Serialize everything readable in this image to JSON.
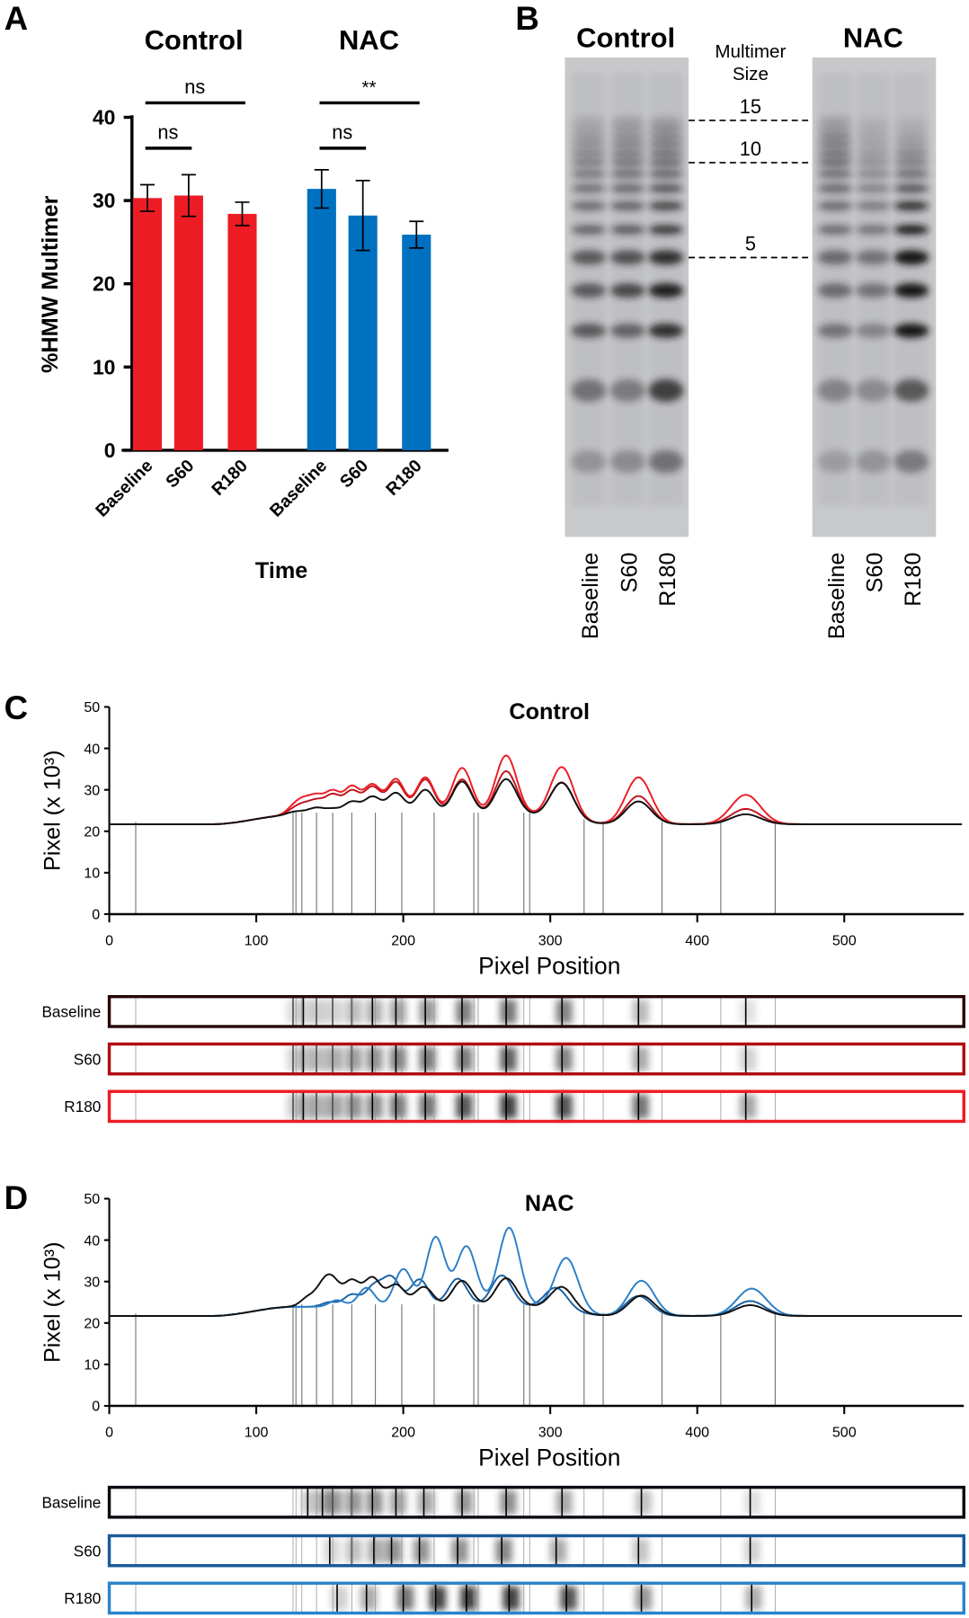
{
  "panel_labels": {
    "a": "A",
    "b": "B",
    "c": "C",
    "d": "D"
  },
  "chart_data": [
    {
      "panel": "A",
      "type": "bar",
      "group_titles": [
        "Control",
        "NAC"
      ],
      "categories": [
        "Baseline",
        "S60",
        "R180"
      ],
      "series": [
        {
          "name": "Control",
          "color": "#ed1c24",
          "values": [
            30.3,
            30.6,
            28.4
          ],
          "errors": [
            1.6,
            2.5,
            1.4
          ]
        },
        {
          "name": "NAC",
          "color": "#0070c0",
          "values": [
            31.4,
            28.2,
            25.9
          ],
          "errors": [
            2.3,
            4.2,
            1.6
          ]
        }
      ],
      "ylabel": "%HMW Multimer",
      "xlabel": "Time",
      "ylim": [
        0,
        40
      ],
      "yticks": [
        "0",
        "10",
        "20",
        "30",
        "40"
      ],
      "significance": [
        {
          "group": 0,
          "from": 0,
          "to": 1,
          "label": "ns"
        },
        {
          "group": 0,
          "from": 0,
          "to": 2,
          "label": "ns"
        },
        {
          "group": 1,
          "from": 0,
          "to": 1,
          "label": "ns"
        },
        {
          "group": 1,
          "from": 0,
          "to": 2,
          "label": "**"
        }
      ]
    },
    {
      "panel": "B",
      "type": "gel",
      "gel_titles": [
        "Control",
        "NAC"
      ],
      "size_label": [
        "Multimer",
        "Size"
      ],
      "size_markers": [
        {
          "label": "15",
          "band": 15
        },
        {
          "label": "10",
          "band": 10
        },
        {
          "label": "5",
          "band": 5
        }
      ],
      "lanes": [
        "Baseline",
        "S60",
        "R180"
      ],
      "band_intensity": {
        "Control": [
          [
            0.25,
            0.45,
            0.6,
            0.6,
            0.6,
            0.55,
            0.5,
            0.45,
            0.4,
            0.35,
            0.3,
            0.25,
            0.2,
            0.15,
            0.1
          ],
          [
            0.3,
            0.4,
            0.55,
            0.7,
            0.65,
            0.6,
            0.55,
            0.5,
            0.45,
            0.4,
            0.35,
            0.3,
            0.25,
            0.2,
            0.15
          ],
          [
            0.45,
            0.75,
            0.85,
            0.95,
            0.85,
            0.8,
            0.7,
            0.6,
            0.5,
            0.45,
            0.4,
            0.35,
            0.3,
            0.25,
            0.15
          ]
        ],
        "NAC": [
          [
            0.2,
            0.35,
            0.45,
            0.5,
            0.5,
            0.5,
            0.5,
            0.5,
            0.45,
            0.45,
            0.4,
            0.35,
            0.3,
            0.2,
            0.15
          ],
          [
            0.25,
            0.3,
            0.35,
            0.45,
            0.45,
            0.45,
            0.4,
            0.35,
            0.3,
            0.25,
            0.2,
            0.15,
            0.12,
            0.1,
            0.05
          ],
          [
            0.4,
            0.6,
            1,
            1,
            1,
            1,
            0.85,
            0.6,
            0.45,
            0.35,
            0.3,
            0.2,
            0.15,
            0.1,
            0.05
          ]
        ]
      }
    },
    {
      "panel": "C",
      "type": "line",
      "title": "Control",
      "xlabel": "Pixel Position",
      "ylabel": "Pixel (x 10³)",
      "xlim": [
        0,
        580
      ],
      "ylim": [
        0,
        50
      ],
      "xticks": [
        "0",
        "100",
        "200",
        "300",
        "400",
        "500"
      ],
      "yticks": [
        "0",
        "10",
        "20",
        "30",
        "40",
        "50"
      ],
      "baseline_value": 21.7,
      "marker_positions": [
        18,
        125,
        127,
        131,
        141,
        152,
        165,
        181,
        199,
        221,
        248,
        251,
        282,
        286,
        323,
        336,
        376,
        416,
        453
      ],
      "series": [
        {
          "name": "S60",
          "color": "#c0141c",
          "peaks": [
            [
              125,
              25
            ],
            [
              132,
              26
            ],
            [
              141,
              27
            ],
            [
              152,
              28.5
            ],
            [
              165,
              29.5
            ],
            [
              179,
              30.5
            ],
            [
              195,
              31.8
            ],
            [
              215,
              32.5
            ],
            [
              240,
              32.5
            ],
            [
              270,
              34.5
            ],
            [
              308,
              31.8
            ],
            [
              360,
              28.5
            ],
            [
              433,
              25.4
            ]
          ]
        },
        {
          "name": "R180",
          "color": "#ed1c24",
          "peaks": [
            [
              125,
              25.5
            ],
            [
              132,
              27
            ],
            [
              141,
              28
            ],
            [
              152,
              29.3
            ],
            [
              165,
              30.5
            ],
            [
              179,
              31
            ],
            [
              195,
              32.5
            ],
            [
              215,
              33
            ],
            [
              240,
              35.3
            ],
            [
              270,
              38.3
            ],
            [
              308,
              35.5
            ],
            [
              360,
              33
            ],
            [
              433,
              28.8
            ]
          ]
        },
        {
          "name": "Baseline",
          "color": "#111111",
          "peaks": [
            [
              125,
              24.5
            ],
            [
              132,
              24.5
            ],
            [
              141,
              25.5
            ],
            [
              152,
              25.3
            ],
            [
              165,
              27
            ],
            [
              179,
              28.2
            ],
            [
              195,
              29.2
            ],
            [
              215,
              30
            ],
            [
              240,
              32
            ],
            [
              270,
              32.6
            ],
            [
              308,
              31.7
            ],
            [
              360,
              27.2
            ],
            [
              433,
              24.1
            ]
          ]
        }
      ],
      "lanes": [
        {
          "name": "Baseline",
          "color": "#2a0808"
        },
        {
          "name": "S60",
          "color": "#b00c12"
        },
        {
          "name": "R180",
          "color": "#ee1c24"
        }
      ]
    },
    {
      "panel": "D",
      "type": "line",
      "title": "NAC",
      "xlabel": "Pixel Position",
      "ylabel": "Pixel (x 10³)",
      "xlim": [
        0,
        580
      ],
      "ylim": [
        0,
        50
      ],
      "xticks": [
        "0",
        "100",
        "200",
        "300",
        "400",
        "500"
      ],
      "yticks": [
        "0",
        "10",
        "20",
        "30",
        "40",
        "50"
      ],
      "baseline_value": 21.7,
      "marker_positions": [
        18,
        125,
        127,
        131,
        141,
        152,
        165,
        181,
        199,
        221,
        248,
        251,
        282,
        286,
        323,
        336,
        376,
        416,
        453
      ],
      "series": [
        {
          "name": "S60",
          "color": "#1d5fa0",
          "peaks": [
            [
              150,
              25
            ],
            [
              165,
              26.8
            ],
            [
              180,
              28.7
            ],
            [
              192,
              30.8
            ],
            [
              211,
              30.5
            ],
            [
              237,
              30.7
            ],
            [
              267,
              31.5
            ],
            [
              304,
              28.5
            ],
            [
              360,
              26.5
            ],
            [
              436,
              25.3
            ]
          ]
        },
        {
          "name": "R180",
          "color": "#2a7fc9",
          "peaks": [
            [
              155,
              25.5
            ],
            [
              175,
              28.5
            ],
            [
              200,
              33
            ],
            [
              222,
              40.7
            ],
            [
              243,
              38.5
            ],
            [
              272,
              43
            ],
            [
              311,
              35.7
            ],
            [
              362,
              30.2
            ],
            [
              437,
              28.3
            ]
          ]
        },
        {
          "name": "Baseline",
          "color": "#111111",
          "peaks": [
            [
              135,
              26
            ],
            [
              145,
              28
            ],
            [
              152,
              29.5
            ],
            [
              165,
              30
            ],
            [
              179,
              30.8
            ],
            [
              195,
              29.2
            ],
            [
              214,
              28.7
            ],
            [
              240,
              30.2
            ],
            [
              270,
              30.8
            ],
            [
              308,
              28.7
            ],
            [
              362,
              26.6
            ],
            [
              436,
              24.3
            ]
          ]
        }
      ],
      "lanes": [
        {
          "name": "Baseline",
          "color": "#0c0c14"
        },
        {
          "name": "S60",
          "color": "#1a5a9c"
        },
        {
          "name": "R180",
          "color": "#2a84cc"
        }
      ]
    }
  ]
}
